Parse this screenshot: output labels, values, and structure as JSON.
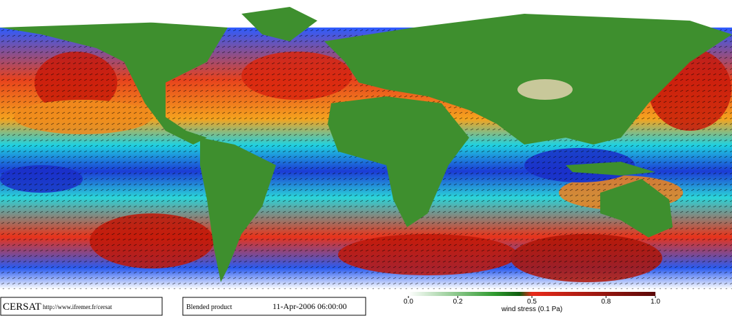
{
  "brand": "CERSAT",
  "url": "http://www.ifremer.fr/cersat",
  "product": "Blended product",
  "timestamp": "11-Apr-2006 06:00:00",
  "colorbar": {
    "label": "wind stress (0.1 Pa)",
    "lim": [
      0,
      1
    ],
    "ticks": [
      {
        "value": 0,
        "label": "0.0"
      },
      0.2,
      0.5,
      0.8,
      {
        "value": 1,
        "label": "1.0"
      }
    ]
  }
}
